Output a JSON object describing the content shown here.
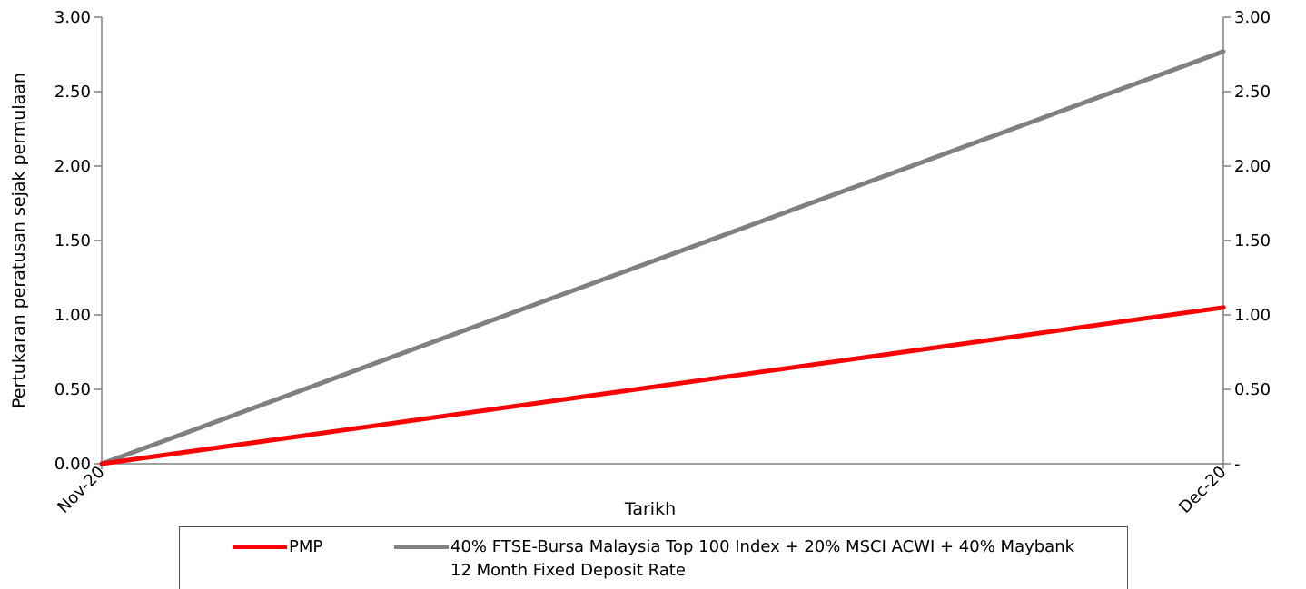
{
  "chart_data": {
    "type": "line",
    "title": "",
    "xlabel": "Tarikh",
    "ylabel": "Pertukaran peratusan sejak permulaan",
    "categories": [
      "Nov-20",
      "Dec-20"
    ],
    "ylim": [
      0,
      3
    ],
    "y_ticks": [
      "0.00",
      "0.50",
      "1.00",
      "1.50",
      "2.00",
      "2.50",
      "3.00"
    ],
    "y2_ticks": [
      "-",
      "0.50",
      "1.00",
      "1.50",
      "2.00",
      "2.50",
      "3.00"
    ],
    "grid": false,
    "legend_position": "bottom",
    "series": [
      {
        "name": "PMP",
        "values": [
          0,
          1.05
        ],
        "color": "#ff0000"
      },
      {
        "name": "40% FTSE-Bursa Malaysia Top 100 Index + 20% MSCI ACWI + 40% Maybank 12 Month Fixed Deposit Rate",
        "values": [
          0,
          2.77
        ],
        "color": "#808080"
      }
    ]
  }
}
